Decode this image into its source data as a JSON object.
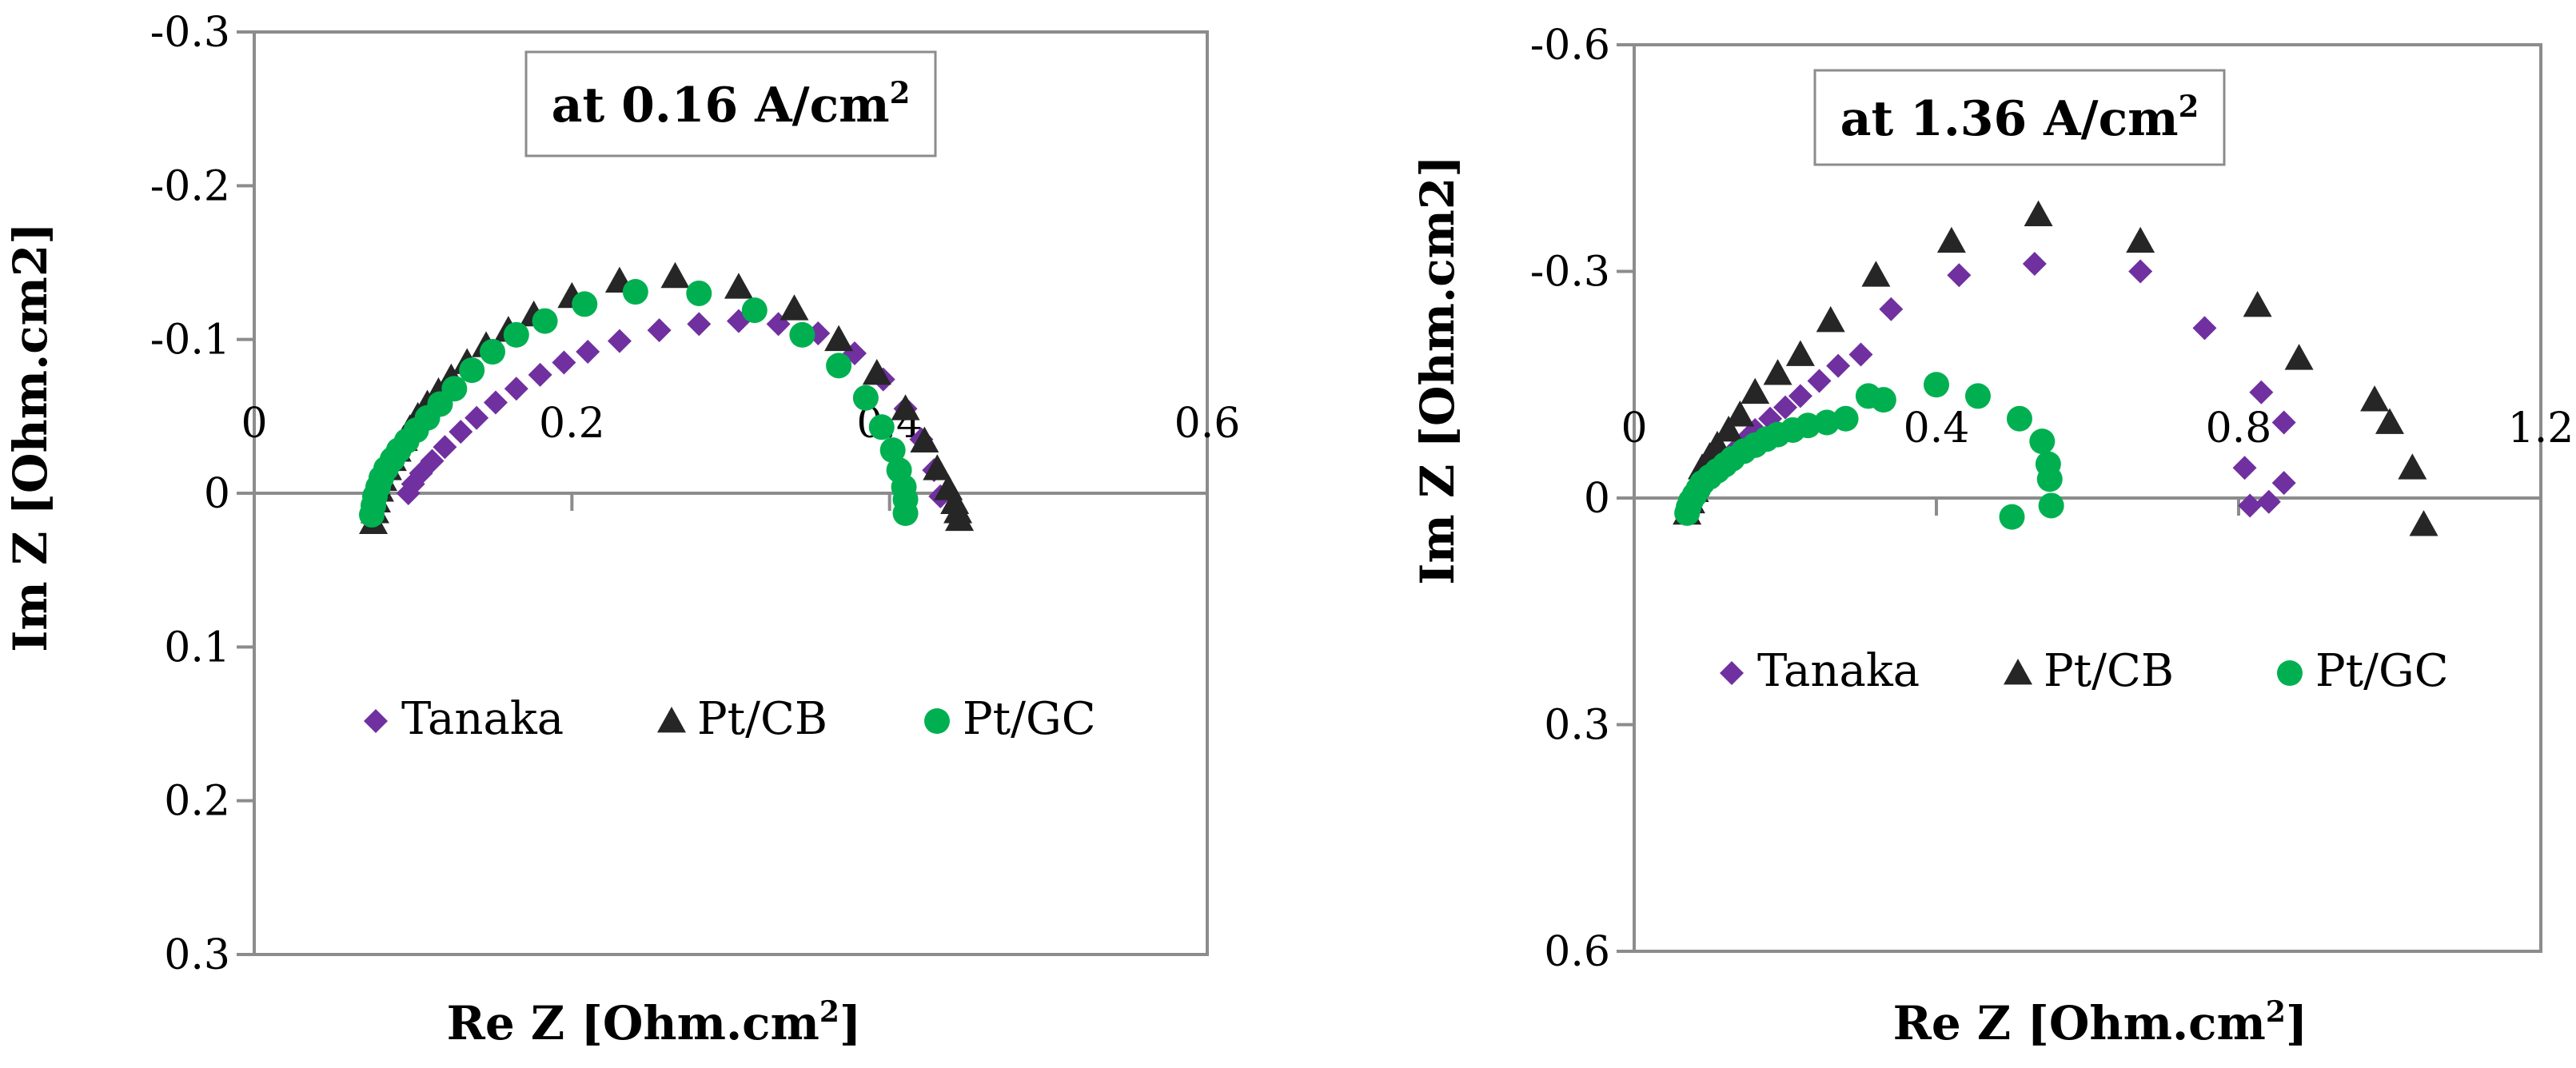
{
  "chart_data": [
    {
      "type": "scatter",
      "title": "at 0.16 A/cm²",
      "xlabel": "Re Z [Ohm.cm²]",
      "ylabel": "Im Z [Ohm.cm2]",
      "xlim": [
        0,
        0.6
      ],
      "ylim": [
        -0.3,
        0.3
      ],
      "y_inverted": true,
      "x_ticks": [
        "0",
        "0.2",
        "0.4",
        "0.6"
      ],
      "x_tick_values": [
        0,
        0.2,
        0.4,
        0.6
      ],
      "y_ticks": [
        "-0.3",
        "-0.2",
        "-0.1",
        "0",
        "0.1",
        "0.2",
        "0.3"
      ],
      "y_tick_values": [
        -0.3,
        -0.2,
        -0.1,
        0,
        0.1,
        0.2,
        0.3
      ],
      "grid": false,
      "legend_position": "bottom-center",
      "colors": {
        "Tanaka": "#7030a0",
        "Pt/CB": "#262626",
        "Pt/GC": "#00b050"
      },
      "series": [
        {
          "name": "Tanaka",
          "marker": "diamond",
          "x": [
            0.097,
            0.1,
            0.105,
            0.112,
            0.12,
            0.13,
            0.14,
            0.152,
            0.165,
            0.18,
            0.195,
            0.21,
            0.23,
            0.255,
            0.28,
            0.305,
            0.33,
            0.355,
            0.378,
            0.396,
            0.41,
            0.42,
            0.428,
            0.432
          ],
          "y": [
            0.0,
            -0.006,
            -0.013,
            -0.021,
            -0.03,
            -0.04,
            -0.049,
            -0.059,
            -0.068,
            -0.077,
            -0.085,
            -0.092,
            -0.099,
            -0.106,
            -0.11,
            -0.112,
            -0.11,
            -0.104,
            -0.091,
            -0.074,
            -0.055,
            -0.035,
            -0.015,
            0.002
          ]
        },
        {
          "name": "Pt/CB",
          "marker": "triangle",
          "x": [
            0.075,
            0.076,
            0.077,
            0.079,
            0.081,
            0.084,
            0.087,
            0.09,
            0.094,
            0.098,
            0.103,
            0.109,
            0.116,
            0.124,
            0.134,
            0.146,
            0.16,
            0.176,
            0.2,
            0.23,
            0.265,
            0.305,
            0.34,
            0.368,
            0.392,
            0.41,
            0.422,
            0.43,
            0.437,
            0.441,
            0.443,
            0.444
          ],
          "y": [
            0.019,
            0.012,
            0.005,
            -0.002,
            -0.009,
            -0.016,
            -0.022,
            -0.028,
            -0.035,
            -0.042,
            -0.05,
            -0.058,
            -0.066,
            -0.075,
            -0.085,
            -0.096,
            -0.106,
            -0.116,
            -0.128,
            -0.138,
            -0.141,
            -0.134,
            -0.12,
            -0.1,
            -0.078,
            -0.055,
            -0.034,
            -0.016,
            -0.003,
            0.006,
            0.012,
            0.017
          ]
        },
        {
          "name": "Pt/GC",
          "marker": "circle",
          "x": [
            0.074,
            0.075,
            0.076,
            0.078,
            0.08,
            0.083,
            0.087,
            0.091,
            0.096,
            0.102,
            0.109,
            0.117,
            0.126,
            0.137,
            0.15,
            0.165,
            0.183,
            0.208,
            0.24,
            0.28,
            0.315,
            0.345,
            0.368,
            0.385,
            0.395,
            0.402,
            0.406,
            0.409,
            0.41,
            0.41
          ],
          "y": [
            0.014,
            0.008,
            0.002,
            -0.004,
            -0.01,
            -0.016,
            -0.022,
            -0.028,
            -0.034,
            -0.041,
            -0.049,
            -0.058,
            -0.068,
            -0.08,
            -0.092,
            -0.103,
            -0.112,
            -0.123,
            -0.131,
            -0.13,
            -0.119,
            -0.103,
            -0.083,
            -0.062,
            -0.043,
            -0.028,
            -0.015,
            -0.004,
            0.004,
            0.013
          ]
        }
      ]
    },
    {
      "type": "scatter",
      "title": "at 1.36 A/cm²",
      "xlabel": "Re Z [Ohm.cm²]",
      "ylabel": "Im Z [Ohm.cm2]",
      "xlim": [
        0,
        1.2
      ],
      "ylim": [
        -0.6,
        0.6
      ],
      "y_inverted": true,
      "x_ticks": [
        "0",
        "0.4",
        "0.8",
        "1.2"
      ],
      "x_tick_values": [
        0,
        0.4,
        0.8,
        1.2
      ],
      "y_ticks": [
        "-0.6",
        "-0.3",
        "0",
        "0.3",
        "0.6"
      ],
      "y_tick_values": [
        -0.6,
        -0.3,
        0,
        0.3,
        0.6
      ],
      "grid": false,
      "legend_position": "bottom-center",
      "colors": {
        "Tanaka": "#7030a0",
        "Pt/CB": "#262626",
        "Pt/GC": "#00b050"
      },
      "series": [
        {
          "name": "Tanaka",
          "marker": "diamond",
          "x": [
            0.075,
            0.085,
            0.1,
            0.115,
            0.13,
            0.145,
            0.16,
            0.18,
            0.2,
            0.22,
            0.245,
            0.27,
            0.3,
            0.34,
            0.43,
            0.53,
            0.67,
            0.755,
            0.83,
            0.86,
            0.86,
            0.808,
            0.84,
            0.815
          ],
          "y": [
            0.0,
            -0.016,
            -0.03,
            -0.045,
            -0.06,
            -0.075,
            -0.09,
            -0.105,
            -0.12,
            -0.135,
            -0.155,
            -0.175,
            -0.19,
            -0.25,
            -0.295,
            -0.31,
            -0.3,
            -0.225,
            -0.14,
            -0.1,
            -0.02,
            -0.04,
            0.005,
            0.01
          ]
        },
        {
          "name": "Pt/CB",
          "marker": "triangle",
          "x": [
            0.07,
            0.075,
            0.08,
            0.085,
            0.09,
            0.1,
            0.11,
            0.125,
            0.14,
            0.16,
            0.19,
            0.22,
            0.26,
            0.32,
            0.42,
            0.535,
            0.67,
            0.825,
            0.88,
            0.98,
            1.0,
            1.03,
            1.045
          ],
          "y": [
            0.02,
            0.005,
            -0.01,
            -0.025,
            -0.04,
            -0.055,
            -0.07,
            -0.09,
            -0.11,
            -0.14,
            -0.165,
            -0.19,
            -0.235,
            -0.295,
            -0.34,
            -0.375,
            -0.34,
            -0.255,
            -0.185,
            -0.13,
            -0.1,
            -0.04,
            0.035
          ]
        },
        {
          "name": "Pt/GC",
          "marker": "circle",
          "x": [
            0.07,
            0.072,
            0.075,
            0.08,
            0.085,
            0.09,
            0.1,
            0.11,
            0.12,
            0.13,
            0.145,
            0.16,
            0.175,
            0.19,
            0.21,
            0.23,
            0.255,
            0.28,
            0.31,
            0.33,
            0.4,
            0.455,
            0.51,
            0.54,
            0.548,
            0.55,
            0.552,
            0.5
          ],
          "y": [
            0.02,
            0.012,
            0.004,
            -0.004,
            -0.012,
            -0.02,
            -0.028,
            -0.036,
            -0.044,
            -0.052,
            -0.062,
            -0.07,
            -0.078,
            -0.084,
            -0.09,
            -0.096,
            -0.1,
            -0.105,
            -0.135,
            -0.13,
            -0.15,
            -0.135,
            -0.105,
            -0.075,
            -0.045,
            -0.025,
            0.01,
            0.025
          ]
        }
      ]
    }
  ]
}
